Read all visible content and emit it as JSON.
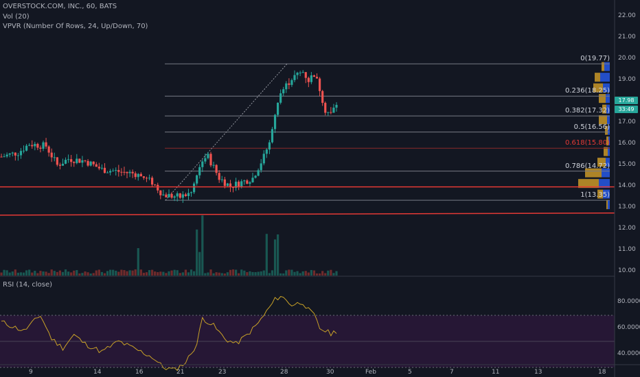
{
  "header": {
    "symbol_line": "OVERSTOCK.COM, INC., 60, BATS",
    "vol_line": "Vol (20)",
    "vpvr_line": "VPVR (Number Of Rows, 24, Up/Down, 70)"
  },
  "rsi": {
    "label": "RSI (14, close)"
  },
  "price_axis": {
    "ticks": [
      "22.00",
      "21.00",
      "20.00",
      "19.00",
      "18.00",
      "17.00",
      "16.00",
      "15.00",
      "14.00",
      "13.00",
      "12.00",
      "11.00",
      "10.00"
    ]
  },
  "rsi_axis": {
    "ticks": [
      "80.0000",
      "60.0000",
      "40.0000"
    ]
  },
  "time_axis": {
    "ticks": [
      "9",
      "14",
      "16",
      "18",
      "21",
      "23",
      "28",
      "30",
      "Feb",
      "5",
      "7",
      "11",
      "13",
      "18"
    ]
  },
  "fib_levels": [
    {
      "ratio": "0",
      "price": 19.77,
      "label": "0(19.77)"
    },
    {
      "ratio": "0.236",
      "price": 18.25,
      "label": "0.236(18.25)"
    },
    {
      "ratio": "0.382",
      "price": 17.32,
      "label": "0.382(17.32)"
    },
    {
      "ratio": "0.5",
      "price": 16.56,
      "label": "0.5(16.56)"
    },
    {
      "ratio": "0.618",
      "price": 15.8,
      "label": "0.618(15.80)"
    },
    {
      "ratio": "0.786",
      "price": 14.72,
      "label": "0.786(14.72)"
    },
    {
      "ratio": "1",
      "price": 13.35,
      "label": "1(13.35)"
    }
  ],
  "price_tags": {
    "last_price": "17.98",
    "countdown": "33:49"
  },
  "colors": {
    "up": "#26a69a",
    "down": "#ef5350",
    "fib": "#787b86",
    "fib_618": "#e53935",
    "trend": "#e53935",
    "rsi_line": "#c9a227",
    "rsi_band": "#2a1838",
    "vp_up": "#2962ff",
    "vp_down": "#f0b429"
  }
}
